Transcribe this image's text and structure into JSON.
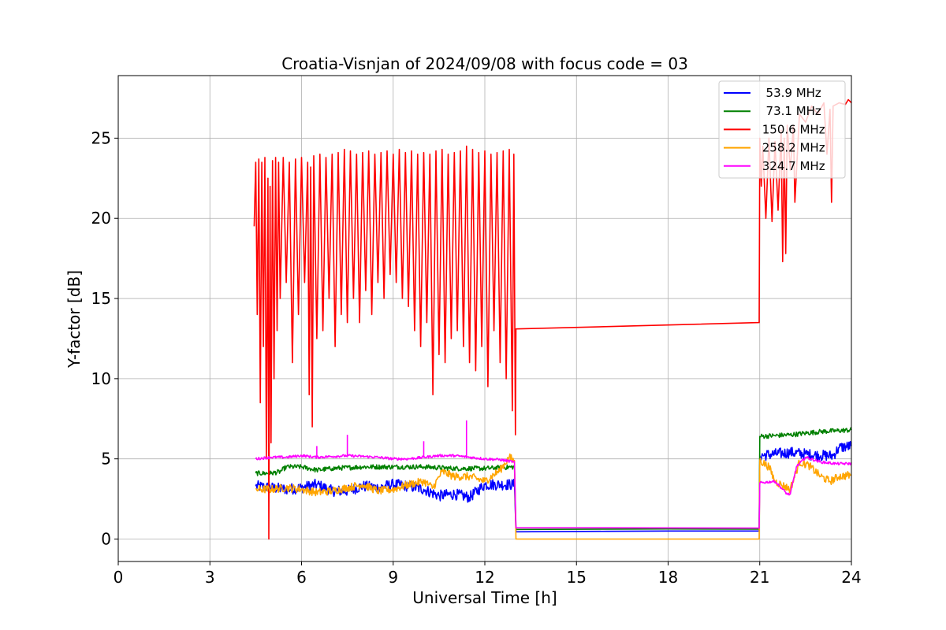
{
  "chart_data": {
    "type": "line",
    "title": "Croatia-Visnjan of 2024/09/08 with focus code = 03",
    "xlabel": "Universal Time [h]",
    "ylabel": "Y-factor [dB]",
    "xlim": [
      0,
      24
    ],
    "ylim": [
      -1.4,
      28.9
    ],
    "xticks": [
      0,
      3,
      6,
      9,
      12,
      15,
      18,
      21,
      24
    ],
    "yticks": [
      0,
      5,
      10,
      15,
      20,
      25
    ],
    "grid": true,
    "legend_position": "top-right",
    "series": [
      {
        "name": "  53.9 MHz",
        "color": "#0000ff",
        "noise": 0.35,
        "points": [
          [
            4.5,
            3.3
          ],
          [
            5.5,
            3.1
          ],
          [
            6.0,
            3.2
          ],
          [
            6.5,
            3.4
          ],
          [
            7.0,
            3.0
          ],
          [
            7.5,
            3.0
          ],
          [
            8.0,
            3.3
          ],
          [
            8.5,
            3.2
          ],
          [
            9.0,
            3.4
          ],
          [
            9.5,
            3.3
          ],
          [
            10.0,
            3.1
          ],
          [
            10.5,
            2.7
          ],
          [
            11.0,
            2.8
          ],
          [
            11.5,
            2.6
          ],
          [
            12.0,
            3.4
          ],
          [
            12.5,
            3.4
          ],
          [
            12.97,
            3.4
          ],
          [
            13.02,
            0.45
          ],
          [
            16.0,
            0.48
          ],
          [
            18.0,
            0.5
          ],
          [
            20.98,
            0.5
          ],
          [
            21.0,
            5.2
          ],
          [
            21.5,
            5.3
          ],
          [
            22.0,
            5.4
          ],
          [
            22.5,
            5.3
          ],
          [
            23.0,
            5.2
          ],
          [
            23.4,
            5.2
          ],
          [
            23.6,
            5.7
          ],
          [
            24.0,
            5.8
          ]
        ]
      },
      {
        "name": "  73.1 MHz",
        "color": "#008000",
        "noise": 0.15,
        "points": [
          [
            4.5,
            4.1
          ],
          [
            5.0,
            4.1
          ],
          [
            5.3,
            4.2
          ],
          [
            5.5,
            4.5
          ],
          [
            6.0,
            4.5
          ],
          [
            6.5,
            4.3
          ],
          [
            7.0,
            4.4
          ],
          [
            8.0,
            4.5
          ],
          [
            9.0,
            4.5
          ],
          [
            10.0,
            4.5
          ],
          [
            11.0,
            4.4
          ],
          [
            12.0,
            4.4
          ],
          [
            12.97,
            4.5
          ],
          [
            13.02,
            0.6
          ],
          [
            16.0,
            0.62
          ],
          [
            18.0,
            0.63
          ],
          [
            20.98,
            0.62
          ],
          [
            21.0,
            6.4
          ],
          [
            21.5,
            6.45
          ],
          [
            22.0,
            6.5
          ],
          [
            22.5,
            6.6
          ],
          [
            23.0,
            6.7
          ],
          [
            23.5,
            6.75
          ],
          [
            24.0,
            6.8
          ]
        ]
      },
      {
        "name": " 150.6 MHz",
        "color": "#ff0000",
        "noise": 0.0,
        "points": [
          [
            4.45,
            19.5
          ],
          [
            4.5,
            23.5
          ],
          [
            4.55,
            14.0
          ],
          [
            4.6,
            23.7
          ],
          [
            4.65,
            8.5
          ],
          [
            4.7,
            23.5
          ],
          [
            4.75,
            12.0
          ],
          [
            4.8,
            23.8
          ],
          [
            4.85,
            5.0
          ],
          [
            4.9,
            22.5
          ],
          [
            4.93,
            0.0
          ],
          [
            4.97,
            22.0
          ],
          [
            5.0,
            6.0
          ],
          [
            5.05,
            23.6
          ],
          [
            5.1,
            10.0
          ],
          [
            5.15,
            23.8
          ],
          [
            5.2,
            13.0
          ],
          [
            5.25,
            23.5
          ],
          [
            5.3,
            15.0
          ],
          [
            5.4,
            23.8
          ],
          [
            5.5,
            16.0
          ],
          [
            5.6,
            23.5
          ],
          [
            5.7,
            11.0
          ],
          [
            5.8,
            23.7
          ],
          [
            5.9,
            14.0
          ],
          [
            6.0,
            23.8
          ],
          [
            6.1,
            16.0
          ],
          [
            6.2,
            23.5
          ],
          [
            6.25,
            9.0
          ],
          [
            6.3,
            23.2
          ],
          [
            6.35,
            7.0
          ],
          [
            6.4,
            23.9
          ],
          [
            6.5,
            12.5
          ],
          [
            6.6,
            24.0
          ],
          [
            6.7,
            13.0
          ],
          [
            6.8,
            23.8
          ],
          [
            6.9,
            15.0
          ],
          [
            7.0,
            24.0
          ],
          [
            7.1,
            12.0
          ],
          [
            7.2,
            24.1
          ],
          [
            7.3,
            14.0
          ],
          [
            7.4,
            24.3
          ],
          [
            7.5,
            13.5
          ],
          [
            7.6,
            24.2
          ],
          [
            7.7,
            15.0
          ],
          [
            7.8,
            24.0
          ],
          [
            7.9,
            13.5
          ],
          [
            8.0,
            24.1
          ],
          [
            8.1,
            15.5
          ],
          [
            8.2,
            24.2
          ],
          [
            8.3,
            14.0
          ],
          [
            8.4,
            24.0
          ],
          [
            8.5,
            16.0
          ],
          [
            8.6,
            24.1
          ],
          [
            8.7,
            15.0
          ],
          [
            8.8,
            24.2
          ],
          [
            8.9,
            16.5
          ],
          [
            9.0,
            24.0
          ],
          [
            9.1,
            16.0
          ],
          [
            9.2,
            24.3
          ],
          [
            9.3,
            15.0
          ],
          [
            9.4,
            24.1
          ],
          [
            9.5,
            14.5
          ],
          [
            9.6,
            24.2
          ],
          [
            9.7,
            13.0
          ],
          [
            9.8,
            24.0
          ],
          [
            9.9,
            12.0
          ],
          [
            10.0,
            24.1
          ],
          [
            10.1,
            13.5
          ],
          [
            10.2,
            24.0
          ],
          [
            10.3,
            9.0
          ],
          [
            10.4,
            24.2
          ],
          [
            10.5,
            11.5
          ],
          [
            10.6,
            24.3
          ],
          [
            10.7,
            11.0
          ],
          [
            10.8,
            24.0
          ],
          [
            10.9,
            12.5
          ],
          [
            11.0,
            24.1
          ],
          [
            11.1,
            13.0
          ],
          [
            11.2,
            24.2
          ],
          [
            11.3,
            12.0
          ],
          [
            11.4,
            24.5
          ],
          [
            11.5,
            11.0
          ],
          [
            11.6,
            24.3
          ],
          [
            11.7,
            10.5
          ],
          [
            11.8,
            24.1
          ],
          [
            11.9,
            12.0
          ],
          [
            12.0,
            24.2
          ],
          [
            12.1,
            9.5
          ],
          [
            12.2,
            24.0
          ],
          [
            12.3,
            13.0
          ],
          [
            12.4,
            24.1
          ],
          [
            12.5,
            11.0
          ],
          [
            12.6,
            24.2
          ],
          [
            12.7,
            10.0
          ],
          [
            12.8,
            24.3
          ],
          [
            12.9,
            8.0
          ],
          [
            12.95,
            24.0
          ],
          [
            13.0,
            6.5
          ],
          [
            13.02,
            13.1
          ],
          [
            17.0,
            13.3
          ],
          [
            20.98,
            13.5
          ],
          [
            21.0,
            25.0
          ],
          [
            21.05,
            22.0
          ],
          [
            21.1,
            24.5
          ],
          [
            21.2,
            20.0
          ],
          [
            21.3,
            25.0
          ],
          [
            21.4,
            19.8
          ],
          [
            21.5,
            24.8
          ],
          [
            21.6,
            20.5
          ],
          [
            21.7,
            25.5
          ],
          [
            21.75,
            17.3
          ],
          [
            21.8,
            25.0
          ],
          [
            21.85,
            17.8
          ],
          [
            21.9,
            25.8
          ],
          [
            22.0,
            23.0
          ],
          [
            22.1,
            25.8
          ],
          [
            22.15,
            21.0
          ],
          [
            22.3,
            26.5
          ],
          [
            22.5,
            26.0
          ],
          [
            22.7,
            27.0
          ],
          [
            22.9,
            26.5
          ],
          [
            23.1,
            27.2
          ],
          [
            23.2,
            24.0
          ],
          [
            23.3,
            26.8
          ],
          [
            23.35,
            21.0
          ],
          [
            23.4,
            27.0
          ],
          [
            23.6,
            27.2
          ],
          [
            23.8,
            27.1
          ],
          [
            23.9,
            27.4
          ],
          [
            24.0,
            27.2
          ]
        ]
      },
      {
        "name": " 258.2 MHz",
        "color": "#ffa500",
        "noise": 0.25,
        "points": [
          [
            4.5,
            3.1
          ],
          [
            5.0,
            3.1
          ],
          [
            5.5,
            3.2
          ],
          [
            6.0,
            3.1
          ],
          [
            6.5,
            2.9
          ],
          [
            7.0,
            3.0
          ],
          [
            7.5,
            3.2
          ],
          [
            8.0,
            3.4
          ],
          [
            8.5,
            3.0
          ],
          [
            9.0,
            3.1
          ],
          [
            9.5,
            3.4
          ],
          [
            10.0,
            3.6
          ],
          [
            10.3,
            3.2
          ],
          [
            10.6,
            4.2
          ],
          [
            11.0,
            3.9
          ],
          [
            11.5,
            3.9
          ],
          [
            12.0,
            3.6
          ],
          [
            12.5,
            4.3
          ],
          [
            12.8,
            5.1
          ],
          [
            12.97,
            4.9
          ],
          [
            13.02,
            0.0
          ],
          [
            16.0,
            0.0
          ],
          [
            20.98,
            0.0
          ],
          [
            21.0,
            4.9
          ],
          [
            21.3,
            4.5
          ],
          [
            21.5,
            3.6
          ],
          [
            21.7,
            3.4
          ],
          [
            22.0,
            3.1
          ],
          [
            22.3,
            4.8
          ],
          [
            22.6,
            4.6
          ],
          [
            23.0,
            3.9
          ],
          [
            23.3,
            3.6
          ],
          [
            23.6,
            3.9
          ],
          [
            24.0,
            4.0
          ]
        ]
      },
      {
        "name": " 324.7 MHz",
        "color": "#ff00ff",
        "noise": 0.08,
        "points": [
          [
            4.5,
            5.0
          ],
          [
            5.0,
            5.1
          ],
          [
            5.5,
            5.1
          ],
          [
            6.0,
            5.2
          ],
          [
            6.5,
            5.1
          ],
          [
            7.0,
            5.15
          ],
          [
            7.5,
            5.2
          ],
          [
            8.0,
            5.15
          ],
          [
            8.5,
            5.1
          ],
          [
            9.0,
            5.0
          ],
          [
            9.5,
            5.0
          ],
          [
            10.0,
            5.1
          ],
          [
            10.5,
            5.2
          ],
          [
            11.0,
            5.2
          ],
          [
            11.5,
            5.1
          ],
          [
            12.0,
            5.0
          ],
          [
            12.5,
            4.95
          ],
          [
            12.97,
            4.8
          ],
          [
            13.02,
            0.7
          ],
          [
            16.0,
            0.7
          ],
          [
            20.98,
            0.68
          ],
          [
            21.0,
            3.5
          ],
          [
            21.5,
            3.6
          ],
          [
            21.7,
            3.2
          ],
          [
            21.9,
            2.8
          ],
          [
            22.0,
            2.8
          ],
          [
            22.2,
            4.5
          ],
          [
            22.5,
            5.1
          ],
          [
            23.0,
            4.8
          ],
          [
            23.5,
            4.7
          ],
          [
            24.0,
            4.7
          ]
        ],
        "spikes": [
          [
            6.5,
            5.8
          ],
          [
            7.5,
            6.5
          ],
          [
            10.0,
            6.1
          ],
          [
            11.4,
            7.4
          ]
        ]
      }
    ]
  }
}
